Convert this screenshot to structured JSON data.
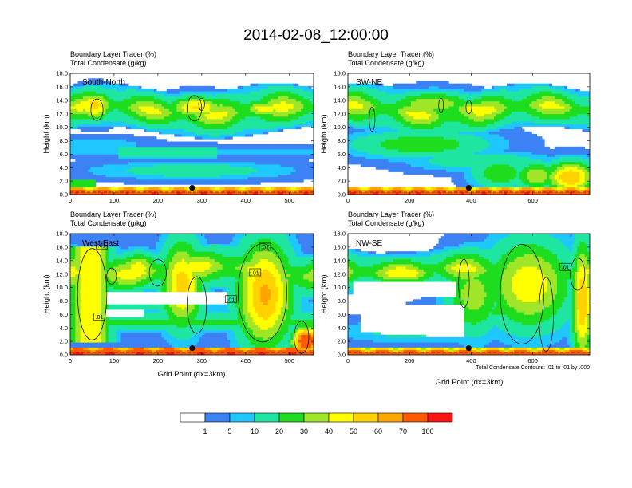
{
  "title": "2014-02-08_12:00:00",
  "colors": {
    "bins": [
      "#ffffff",
      "#3c82f5",
      "#1ec8ff",
      "#1ee6a0",
      "#1edc1e",
      "#a0e628",
      "#ffff00",
      "#ffd200",
      "#ffa500",
      "#ff5a00",
      "#ff1414"
    ],
    "contour": "#000000",
    "dot": "#000000"
  },
  "colorbar": {
    "labels": [
      "1",
      "5",
      "10",
      "20",
      "30",
      "40",
      "50",
      "60",
      "70",
      "100"
    ]
  },
  "footnote": "Total Condensate Contours: .01 to .01 by .000",
  "chart_data": [
    {
      "type": "heatmap",
      "panel": "South-North",
      "line1": "Boundary Layer Tracer   (%)",
      "line2": "Total Condensate   (g/kg)",
      "ylabel": "Height (km)",
      "xlabel": "",
      "xlim": [
        0,
        555
      ],
      "ylim": [
        0,
        18
      ],
      "xticks": [
        "0",
        "100",
        "200",
        "300",
        "400",
        "500"
      ],
      "yticks": [
        "0.0",
        "2.0",
        "4.0",
        "6.0",
        "8.0",
        "10.0",
        "12.0",
        "14.0",
        "16.0",
        "18.0"
      ],
      "marker": {
        "x": 278,
        "y": 1.0
      },
      "contour_labels": []
    },
    {
      "type": "heatmap",
      "panel": "SW-NE",
      "line1": "Boundary Layer Tracer   (%)",
      "line2": "Total Condensate   (g/kg)",
      "ylabel": "Height (km)",
      "xlabel": "",
      "xlim": [
        0,
        785
      ],
      "ylim": [
        0,
        18
      ],
      "xticks": [
        "0",
        "200",
        "400",
        "600"
      ],
      "yticks": [
        "0.0",
        "2.0",
        "4.0",
        "6.0",
        "8.0",
        "10.0",
        "12.0",
        "14.0",
        "16.0",
        "18.0"
      ],
      "marker": {
        "x": 392,
        "y": 1.0
      },
      "contour_labels": []
    },
    {
      "type": "heatmap",
      "panel": "West-East",
      "line1": "Boundary Layer Tracer   (%)",
      "line2": "Total Condensate   (g/kg)",
      "ylabel": "Height (km)",
      "xlabel": "Grid Point (dx=3km)",
      "xlim": [
        0,
        555
      ],
      "ylim": [
        0,
        18
      ],
      "xticks": [
        "0",
        "100",
        "200",
        "300",
        "400",
        "500"
      ],
      "yticks": [
        "0.0",
        "2.0",
        "4.0",
        "6.0",
        "8.0",
        "10.0",
        "12.0",
        "14.0",
        "16.0",
        "18.0"
      ],
      "marker": {
        "x": 278,
        "y": 1.0
      },
      "contour_labels": [
        ".01",
        ".01",
        ".01",
        ".01",
        ".01"
      ]
    },
    {
      "type": "heatmap",
      "panel": "NW-SE",
      "line1": "Boundary Layer Tracer   (%)",
      "line2": "Total Condensate   (g/kg)",
      "ylabel": "Height (km)",
      "xlabel": "Grid Point (dx=3km)",
      "xlim": [
        0,
        785
      ],
      "ylim": [
        0,
        18
      ],
      "xticks": [
        "0",
        "200",
        "400",
        "600"
      ],
      "yticks": [
        "0.0",
        "2.0",
        "4.0",
        "6.0",
        "8.0",
        "10.0",
        "12.0",
        "14.0",
        "16.0",
        "18.0"
      ],
      "marker": {
        "x": 392,
        "y": 1.0
      },
      "contour_labels": [
        ".01"
      ]
    }
  ]
}
